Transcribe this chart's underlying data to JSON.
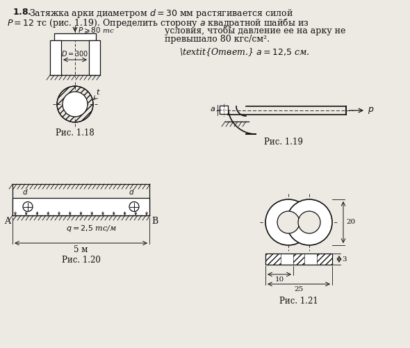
{
  "bg_color": "#ede9e3",
  "lc": "#111111",
  "fig118_label": "Рис. 1.18",
  "fig119_label": "Рис. 1.19",
  "fig120_label": "Рис. 1.20",
  "fig121_label": "Рис. 1.21",
  "line1": "1.8.  Затяжка арки диаметром $d = 30$ мм растягивается силой",
  "line2": "$P = 12$ тс (рис. 1.19). Определить сторону $a$ квадратной шайбы из",
  "line3r": "условия, чтобы давление ее на арку не",
  "line4r": "превышало 80 кгс/см².",
  "answer": "Ответ. $a = 12{,}5$ см."
}
